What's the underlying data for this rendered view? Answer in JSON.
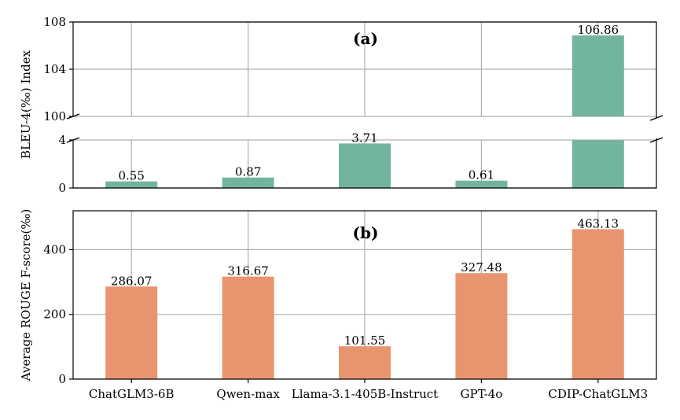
{
  "colors": {
    "top_bar": "#72b49f",
    "bottom_bar": "#e8956f",
    "grid": "#b0b0b0"
  },
  "chart_data": [
    {
      "type": "bar",
      "panel_label": "(a)",
      "ylabel": "BLEU-4(‰) Index",
      "categories": [
        "ChatGLM3-6B",
        "Qwen-max",
        "Llama-3.1-405B-Instruct",
        "GPT-4o",
        "CDIP-ChatGLM3"
      ],
      "values": [
        0.55,
        0.87,
        3.71,
        0.61,
        106.86
      ],
      "value_labels": [
        "0.55",
        "0.87",
        "3.71",
        "0.61",
        "106.86"
      ],
      "broken_axis": {
        "lower": {
          "range": [
            0,
            4
          ],
          "ticks": [
            "0",
            "4"
          ]
        },
        "upper": {
          "range": [
            100,
            108
          ],
          "ticks": [
            "100",
            "104",
            "108"
          ]
        }
      },
      "grid": true
    },
    {
      "type": "bar",
      "panel_label": "(b)",
      "ylabel": "Average ROUGE F-score(‰)",
      "categories": [
        "ChatGLM3-6B",
        "Qwen-max",
        "Llama-3.1-405B-Instruct",
        "GPT-4o",
        "CDIP-ChatGLM3"
      ],
      "values": [
        286.07,
        316.67,
        101.55,
        327.48,
        463.13
      ],
      "value_labels": [
        "286.07",
        "316.67",
        "101.55",
        "327.48",
        "463.13"
      ],
      "ylim": [
        0,
        520
      ],
      "ticks": [
        "0",
        "200",
        "400"
      ],
      "xtick_labels": [
        "ChatGLM3-6B",
        "Qwen-max",
        "Llama-3.1-405B-Instruct",
        "GPT-4o",
        "CDIP-ChatGLM3"
      ],
      "grid": true
    }
  ]
}
